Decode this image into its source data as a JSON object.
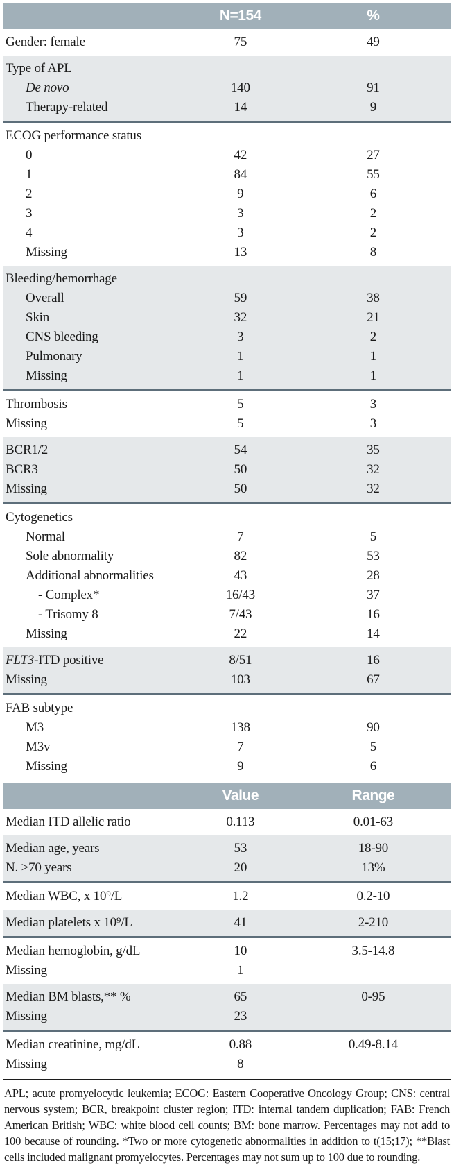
{
  "table1": {
    "header": {
      "col2": "N=154",
      "col3": "%"
    },
    "sections": [
      {
        "shaded": false,
        "rows": [
          {
            "label": "Gender: female",
            "v1": "75",
            "v2": "49",
            "indent": 0
          }
        ]
      },
      {
        "shaded": true,
        "rows": [
          {
            "label": "Type of APL",
            "v1": "",
            "v2": "",
            "indent": 0
          },
          {
            "label": "De novo",
            "italic": true,
            "v1": "140",
            "v2": "91",
            "indent": 1
          },
          {
            "label": "Therapy-related",
            "v1": "14",
            "v2": "9",
            "indent": 1
          }
        ]
      },
      {
        "shaded": false,
        "rows": [
          {
            "label": "ECOG performance status",
            "v1": "",
            "v2": "",
            "indent": 0
          },
          {
            "label": "0",
            "v1": "42",
            "v2": "27",
            "indent": 1
          },
          {
            "label": "1",
            "v1": "84",
            "v2": "55",
            "indent": 1
          },
          {
            "label": "2",
            "v1": "9",
            "v2": "6",
            "indent": 1
          },
          {
            "label": "3",
            "v1": "3",
            "v2": "2",
            "indent": 1
          },
          {
            "label": "4",
            "v1": "3",
            "v2": "2",
            "indent": 1
          },
          {
            "label": "Missing",
            "v1": "13",
            "v2": "8",
            "indent": 1
          }
        ]
      },
      {
        "shaded": true,
        "rows": [
          {
            "label": "Bleeding/hemorrhage",
            "v1": "",
            "v2": "",
            "indent": 0
          },
          {
            "label": "Overall",
            "v1": "59",
            "v2": "38",
            "indent": 1
          },
          {
            "label": "Skin",
            "v1": "32",
            "v2": "21",
            "indent": 1
          },
          {
            "label": "CNS bleeding",
            "v1": "3",
            "v2": "2",
            "indent": 1
          },
          {
            "label": "Pulmonary",
            "v1": "1",
            "v2": "1",
            "indent": 1
          },
          {
            "label": "Missing",
            "v1": "1",
            "v2": "1",
            "indent": 1
          }
        ]
      },
      {
        "shaded": false,
        "rows": [
          {
            "label": "Thrombosis",
            "v1": "5",
            "v2": "3",
            "indent": 0
          },
          {
            "label": "Missing",
            "v1": "5",
            "v2": "3",
            "indent": 0
          }
        ]
      },
      {
        "shaded": true,
        "rows": [
          {
            "label": "BCR1/2",
            "v1": "54",
            "v2": "35",
            "indent": 0
          },
          {
            "label": "BCR3",
            "v1": "50",
            "v2": "32",
            "indent": 0
          },
          {
            "label": "Missing",
            "v1": "50",
            "v2": "32",
            "indent": 0
          }
        ]
      },
      {
        "shaded": false,
        "rows": [
          {
            "label": "Cytogenetics",
            "v1": "",
            "v2": "",
            "indent": 0
          },
          {
            "label": "Normal",
            "v1": "7",
            "v2": "5",
            "indent": 1
          },
          {
            "label": "Sole abnormality",
            "v1": "82",
            "v2": "53",
            "indent": 1
          },
          {
            "label": "Additional abnormalities",
            "v1": "43",
            "v2": "28",
            "indent": 1
          },
          {
            "label": "- Complex*",
            "v1": "16/43",
            "v2": "37",
            "indent": 2
          },
          {
            "label": "- Trisomy 8",
            "v1": "7/43",
            "v2": "16",
            "indent": 2
          },
          {
            "label": "Missing",
            "v1": "22",
            "v2": "14",
            "indent": 1
          }
        ]
      },
      {
        "shaded": true,
        "rows": [
          {
            "label_italic_part": "FLT3",
            "label": "-ITD positive",
            "v1": "8/51",
            "v2": "16",
            "indent": 0
          },
          {
            "label": "Missing",
            "v1": "103",
            "v2": "67",
            "indent": 0
          }
        ]
      },
      {
        "shaded": false,
        "rows": [
          {
            "label": "FAB subtype",
            "v1": "",
            "v2": "",
            "indent": 0
          },
          {
            "label": "M3",
            "v1": "138",
            "v2": "90",
            "indent": 1
          },
          {
            "label": "M3v",
            "v1": "7",
            "v2": "5",
            "indent": 1
          },
          {
            "label": "Missing",
            "v1": "9",
            "v2": "6",
            "indent": 1
          }
        ]
      }
    ]
  },
  "table2": {
    "header": {
      "col2": "Value",
      "col3": "Range"
    },
    "sections": [
      {
        "shaded": false,
        "rows": [
          {
            "label": "Median ITD allelic ratio",
            "v1": "0.113",
            "v2": "0.01-63",
            "indent": 0
          }
        ]
      },
      {
        "shaded": true,
        "rows": [
          {
            "label": "Median age, years",
            "v1": "53",
            "v2": "18-90",
            "indent": 0
          },
          {
            "label": "N. >70 years",
            "v1": "20",
            "v2": "13%",
            "indent": 0
          }
        ]
      },
      {
        "shaded": false,
        "rows": [
          {
            "label": "Median WBC, x 10⁹/L",
            "v1": "1.2",
            "v2": "0.2-10",
            "indent": 0
          }
        ]
      },
      {
        "shaded": true,
        "rows": [
          {
            "label": "Median platelets x 10⁹/L",
            "v1": "41",
            "v2": "2-210",
            "indent": 0
          }
        ]
      },
      {
        "shaded": false,
        "rows": [
          {
            "label": "Median hemoglobin, g/dL",
            "v1": "10",
            "v2": "3.5-14.8",
            "indent": 0
          },
          {
            "label": "Missing",
            "v1": "1",
            "v2": "",
            "indent": 0
          }
        ]
      },
      {
        "shaded": true,
        "rows": [
          {
            "label": "Median BM blasts,** %",
            "v1": "65",
            "v2": "0-95",
            "indent": 0
          },
          {
            "label": "Missing",
            "v1": "23",
            "v2": "",
            "indent": 0
          }
        ]
      },
      {
        "shaded": false,
        "rows": [
          {
            "label": "Median creatinine, mg/dL",
            "v1": "0.88",
            "v2": "0.49-8.14",
            "indent": 0
          },
          {
            "label": "Missing",
            "v1": "8",
            "v2": "",
            "indent": 0
          }
        ]
      }
    ]
  },
  "footnote": "APL; acute promyelocytic leukemia; ECOG: Eastern Cooperative Oncology Group; CNS: central nervous system; BCR, breakpoint cluster region; ITD: internal tandem duplication; FAB: French American British; WBC: white blood cell counts; BM: bone marrow. Percentages may not add to 100 because of rounding. *Two or more cytogenetic abnormalities in addition to t(15;17); **Blast cells included malignant promyelocytes. Percentages may not sum up to 100 due to rounding.",
  "colors": {
    "header_bar_bg": "#a1b0b9",
    "shaded_section_bg": "#e5e8ea",
    "section_rule": "#5d6e7a",
    "footnote_rule": "#1c1c1c"
  }
}
